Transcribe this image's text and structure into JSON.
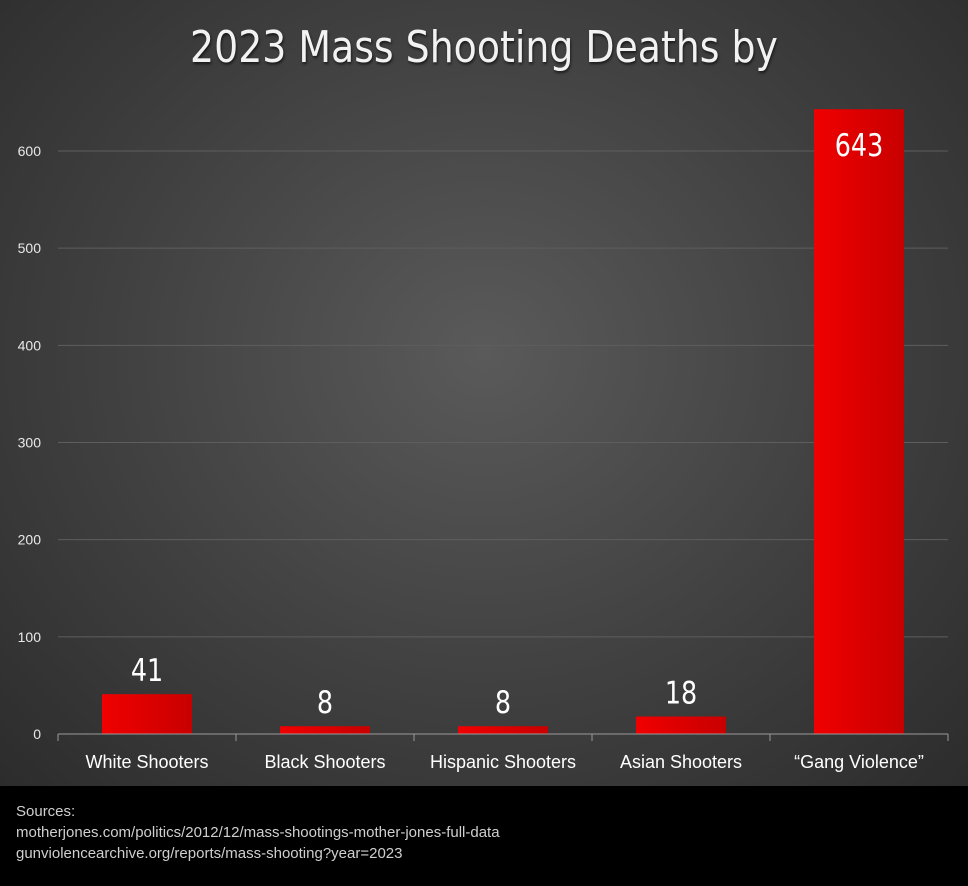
{
  "chart_data": {
    "type": "bar",
    "title": "2023 Mass Shooting Deaths by",
    "categories": [
      "White Shooters",
      "Black Shooters",
      "Hispanic Shooters",
      "Asian Shooters",
      "“Gang Violence”"
    ],
    "values": [
      41,
      8,
      8,
      18,
      643
    ],
    "value_labels": [
      "41",
      "8",
      "8",
      "18",
      "643"
    ],
    "y_ticks": [
      0,
      100,
      200,
      300,
      400,
      500,
      600
    ],
    "y_tick_labels": [
      "0",
      "100",
      "200",
      "300",
      "400",
      "500",
      "600"
    ],
    "ylim": [
      0,
      700
    ],
    "xlabel": "",
    "ylabel": "",
    "grid": true,
    "colors": {
      "bar": "#e60000",
      "bar_dark": "#b80000",
      "grid": "#5e5e5e",
      "axis": "#9a9a9a",
      "text": "#ffffff",
      "tick_text": "#e8e8e8"
    }
  },
  "sources": {
    "heading": "Sources:",
    "lines": [
      "motherjones.com/politics/2012/12/mass-shootings-mother-jones-full-data",
      "gunviolencearchive.org/reports/mass-shooting?year=2023"
    ]
  }
}
